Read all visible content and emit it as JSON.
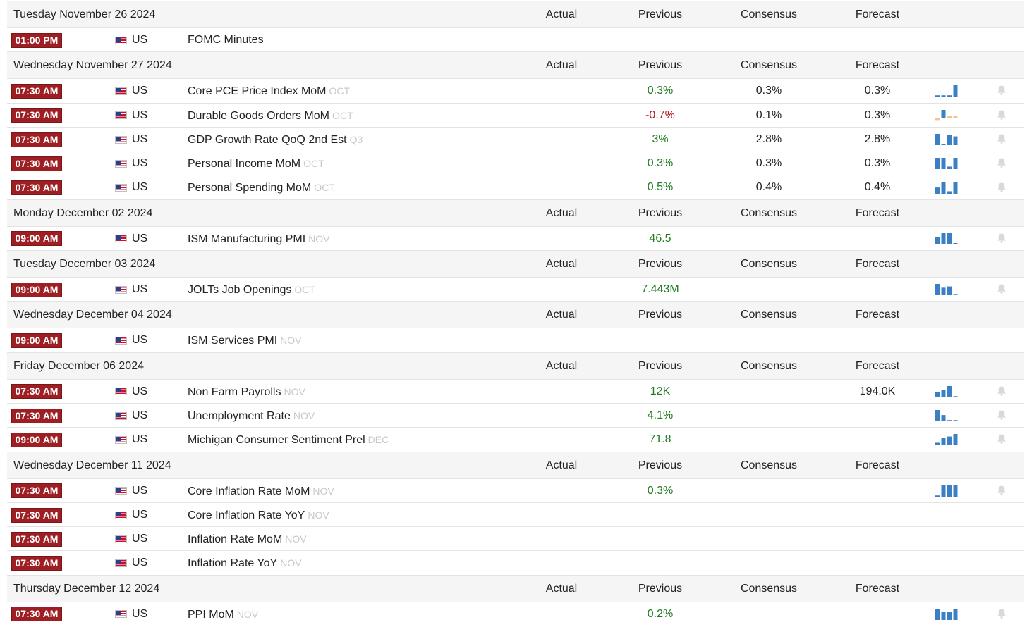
{
  "columns": {
    "actual": "Actual",
    "previous": "Previous",
    "consensus": "Consensus",
    "forecast": "Forecast"
  },
  "colors": {
    "time_badge": "#9e1f23",
    "positive": "#1e7b1e",
    "negative": "#b01919",
    "spark": "#3b7fc4",
    "spark_light": "#f0c78a"
  },
  "groups": [
    {
      "date": "Tuesday November 26 2024",
      "events": [
        {
          "time": "01:00 PM",
          "country": "US",
          "event": "FOMC Minutes",
          "ref": "",
          "actual": "",
          "previous": "",
          "previous_tone": "neu",
          "consensus": "",
          "forecast": "",
          "spark": [],
          "has_bell": false
        }
      ]
    },
    {
      "date": "Wednesday November 27 2024",
      "events": [
        {
          "time": "07:30 AM",
          "country": "US",
          "event": "Core PCE Price Index MoM",
          "ref": "OCT",
          "actual": "",
          "previous": "0.3%",
          "previous_tone": "pos",
          "consensus": "0.3%",
          "forecast": "0.3%",
          "spark": [
            0.1,
            0.1,
            0.1,
            0.9
          ],
          "has_bell": true
        },
        {
          "time": "07:30 AM",
          "country": "US",
          "event": "Durable Goods Orders MoM",
          "ref": "OCT",
          "actual": "",
          "previous": "-0.7%",
          "previous_tone": "neg",
          "consensus": "0.1%",
          "forecast": "0.3%",
          "spark": [
            -0.2,
            0.5,
            0.1,
            0.1
          ],
          "has_bell": true
        },
        {
          "time": "07:30 AM",
          "country": "US",
          "event": "GDP Growth Rate QoQ 2nd Est",
          "ref": "Q3",
          "actual": "",
          "previous": "3%",
          "previous_tone": "pos",
          "consensus": "2.8%",
          "forecast": "2.8%",
          "spark": [
            0.9,
            0.1,
            0.8,
            0.7
          ],
          "has_bell": true
        },
        {
          "time": "07:30 AM",
          "country": "US",
          "event": "Personal Income MoM",
          "ref": "OCT",
          "actual": "",
          "previous": "0.3%",
          "previous_tone": "pos",
          "consensus": "0.3%",
          "forecast": "0.3%",
          "spark": [
            0.9,
            0.9,
            0.2,
            0.9
          ],
          "has_bell": true
        },
        {
          "time": "07:30 AM",
          "country": "US",
          "event": "Personal Spending MoM",
          "ref": "OCT",
          "actual": "",
          "previous": "0.5%",
          "previous_tone": "pos",
          "consensus": "0.4%",
          "forecast": "0.4%",
          "spark": [
            0.5,
            0.9,
            0.2,
            0.9
          ],
          "has_bell": true
        }
      ]
    },
    {
      "date": "Monday December 02 2024",
      "events": [
        {
          "time": "09:00 AM",
          "country": "US",
          "event": "ISM Manufacturing PMI",
          "ref": "NOV",
          "actual": "",
          "previous": "46.5",
          "previous_tone": "pos",
          "consensus": "",
          "forecast": "",
          "spark": [
            0.5,
            0.8,
            0.8,
            0.1
          ],
          "has_bell": true
        }
      ]
    },
    {
      "date": "Tuesday December 03 2024",
      "events": [
        {
          "time": "09:00 AM",
          "country": "US",
          "event": "JOLTs Job Openings",
          "ref": "OCT",
          "actual": "",
          "previous": "7.443M",
          "previous_tone": "pos",
          "consensus": "",
          "forecast": "",
          "spark": [
            0.9,
            0.6,
            0.7,
            0.1
          ],
          "has_bell": true
        }
      ]
    },
    {
      "date": "Wednesday December 04 2024",
      "events": [
        {
          "time": "09:00 AM",
          "country": "US",
          "event": "ISM Services PMI",
          "ref": "NOV",
          "actual": "",
          "previous": "",
          "previous_tone": "neu",
          "consensus": "",
          "forecast": "",
          "spark": [],
          "has_bell": false
        }
      ]
    },
    {
      "date": "Friday December 06 2024",
      "events": [
        {
          "time": "07:30 AM",
          "country": "US",
          "event": "Non Farm Payrolls",
          "ref": "NOV",
          "actual": "",
          "previous": "12K",
          "previous_tone": "pos",
          "consensus": "",
          "forecast": "194.0K",
          "spark": [
            0.4,
            0.6,
            0.9,
            0.1
          ],
          "has_bell": true
        },
        {
          "time": "07:30 AM",
          "country": "US",
          "event": "Unemployment Rate",
          "ref": "NOV",
          "actual": "",
          "previous": "4.1%",
          "previous_tone": "pos",
          "consensus": "",
          "forecast": "",
          "spark": [
            0.9,
            0.5,
            0.1,
            0.1
          ],
          "has_bell": true
        },
        {
          "time": "09:00 AM",
          "country": "US",
          "event": "Michigan Consumer Sentiment Prel",
          "ref": "DEC",
          "actual": "",
          "previous": "71.8",
          "previous_tone": "pos",
          "consensus": "",
          "forecast": "",
          "spark": [
            0.2,
            0.6,
            0.7,
            0.9
          ],
          "has_bell": true
        }
      ]
    },
    {
      "date": "Wednesday December 11 2024",
      "events": [
        {
          "time": "07:30 AM",
          "country": "US",
          "event": "Core Inflation Rate MoM",
          "ref": "NOV",
          "actual": "",
          "previous": "0.3%",
          "previous_tone": "pos",
          "consensus": "",
          "forecast": "",
          "spark": [
            0.1,
            0.9,
            0.9,
            0.9
          ],
          "has_bell": true
        },
        {
          "time": "07:30 AM",
          "country": "US",
          "event": "Core Inflation Rate YoY",
          "ref": "NOV",
          "actual": "",
          "previous": "",
          "previous_tone": "neu",
          "consensus": "",
          "forecast": "",
          "spark": [],
          "has_bell": false
        },
        {
          "time": "07:30 AM",
          "country": "US",
          "event": "Inflation Rate MoM",
          "ref": "NOV",
          "actual": "",
          "previous": "",
          "previous_tone": "neu",
          "consensus": "",
          "forecast": "",
          "spark": [],
          "has_bell": false
        },
        {
          "time": "07:30 AM",
          "country": "US",
          "event": "Inflation Rate YoY",
          "ref": "NOV",
          "actual": "",
          "previous": "",
          "previous_tone": "neu",
          "consensus": "",
          "forecast": "",
          "spark": [],
          "has_bell": false
        }
      ]
    },
    {
      "date": "Thursday December 12 2024",
      "events": [
        {
          "time": "07:30 AM",
          "country": "US",
          "event": "PPI MoM",
          "ref": "NOV",
          "actual": "",
          "previous": "0.2%",
          "previous_tone": "pos",
          "consensus": "",
          "forecast": "",
          "spark": [
            0.7,
            0.5,
            0.5,
            0.7
          ],
          "has_bell": true
        }
      ]
    }
  ]
}
